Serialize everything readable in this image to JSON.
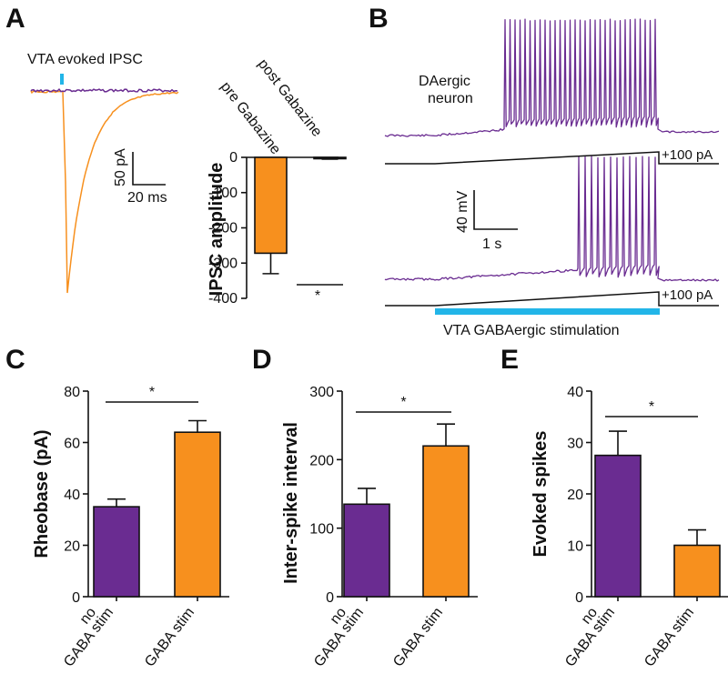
{
  "colors": {
    "purple": "#6a2c91",
    "orange": "#f7901e",
    "cyan": "#22b5e8",
    "black": "#111111"
  },
  "panel_A": {
    "letter": "A",
    "trace_label": "VTA evoked IPSC",
    "scalebar_y": "50 pA",
    "scalebar_x": "20 ms",
    "bar_chart": {
      "type": "bar",
      "categories": [
        "pre Gabazine",
        "post Gabazine"
      ],
      "values": [
        -272,
        -3
      ],
      "errors": [
        58,
        2
      ],
      "ylabel": "IPSC amplitude",
      "ylim": [
        -400,
        0
      ],
      "yticks": [
        "0",
        "-100",
        "-200",
        "-300",
        "-400"
      ],
      "significance": "*"
    }
  },
  "panel_B": {
    "letter": "B",
    "cell_label_line1": "DAergic",
    "cell_label_line2": "neuron",
    "ramp_label_top": "+100 pA",
    "ramp_label_bottom": "+100 pA",
    "scalebar_y": "40 mV",
    "scalebar_x": "1 s",
    "stim_label": "VTA GABAergic stimulation",
    "spikes_top": 31,
    "spikes_bottom": 13
  },
  "chart_data": [
    {
      "panel": "C",
      "type": "bar",
      "categories": [
        "no GABA stim",
        "GABA stim"
      ],
      "category_lines": [
        [
          "no",
          "GABA stim"
        ],
        [
          "GABA stim"
        ]
      ],
      "values": [
        35,
        64
      ],
      "errors": [
        3,
        4.5
      ],
      "ylabel": "Rheobase (pA)",
      "ylim": [
        0,
        80
      ],
      "yticks": [
        0,
        20,
        40,
        60,
        80
      ],
      "significance": "*"
    },
    {
      "panel": "D",
      "type": "bar",
      "categories": [
        "no GABA stim",
        "GABA stim"
      ],
      "category_lines": [
        [
          "no",
          "GABA stim"
        ],
        [
          "GABA stim"
        ]
      ],
      "values": [
        135,
        220
      ],
      "errors": [
        23,
        32
      ],
      "ylabel": "Inter-spike interval",
      "ylim": [
        0,
        300
      ],
      "yticks": [
        0,
        100,
        200,
        300
      ],
      "significance": "*"
    },
    {
      "panel": "E",
      "type": "bar",
      "categories": [
        "no GABA stim",
        "GABA stim"
      ],
      "category_lines": [
        [
          "no",
          "GABA stim"
        ],
        [
          "GABA stim"
        ]
      ],
      "values": [
        27.5,
        10
      ],
      "errors": [
        4.7,
        3
      ],
      "ylabel": "Evoked spikes",
      "ylim": [
        0,
        40
      ],
      "yticks": [
        0,
        10,
        20,
        30,
        40
      ],
      "significance": "*"
    }
  ]
}
